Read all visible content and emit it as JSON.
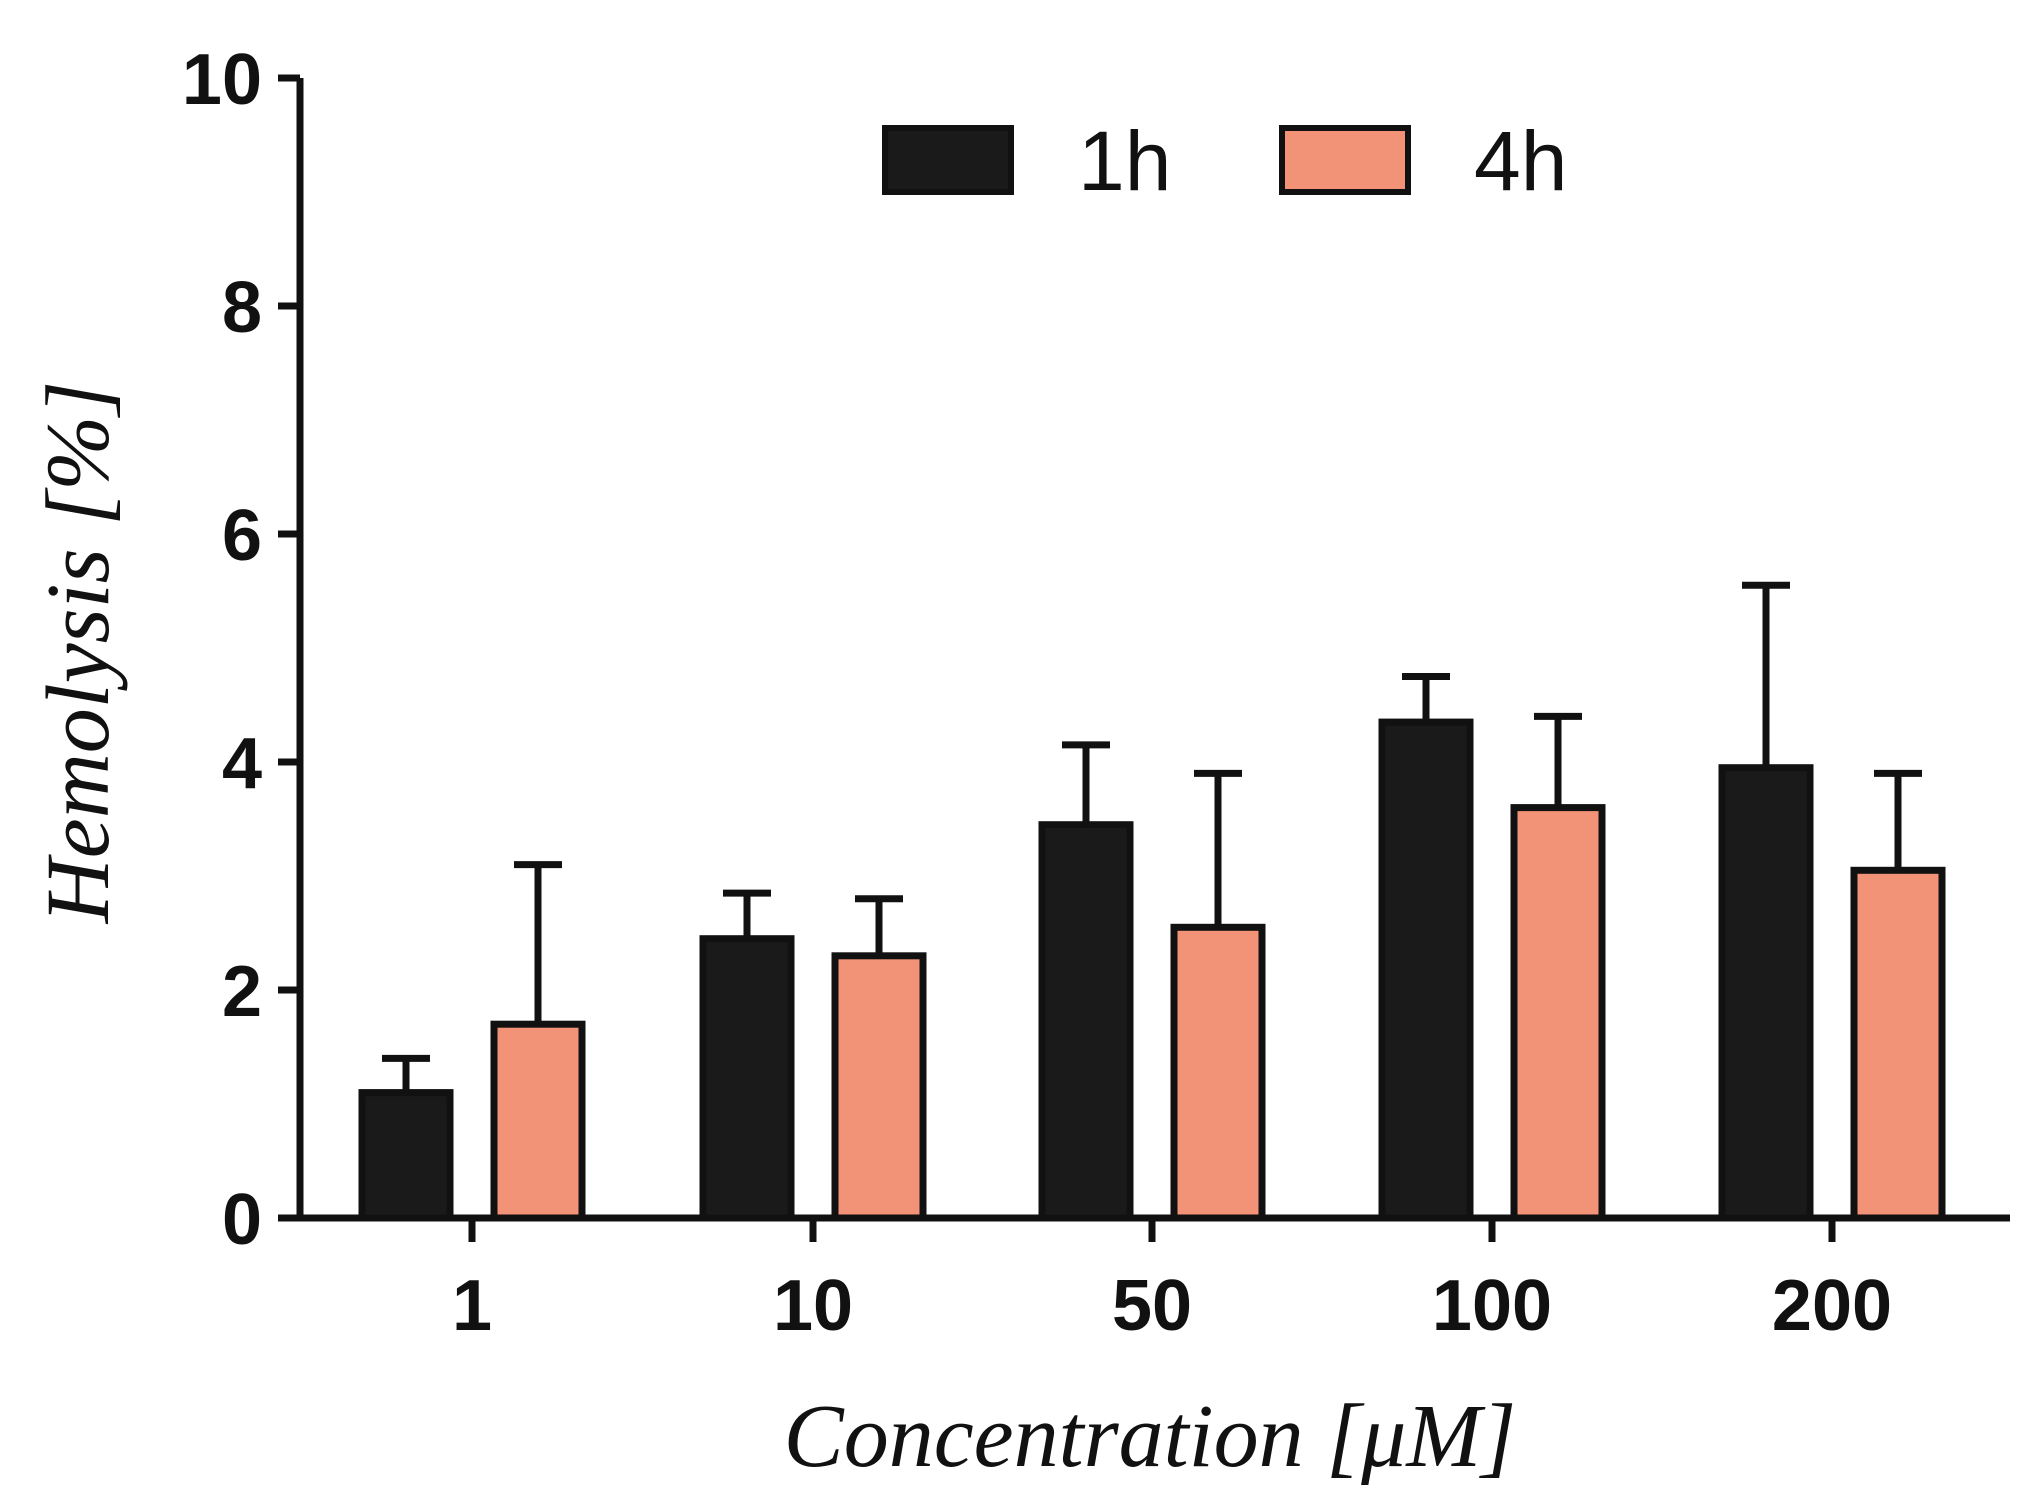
{
  "chart_data": {
    "type": "bar",
    "xlabel": "Concentration [μM]",
    "ylabel": "Hemolysis [%]",
    "ylim": [
      0,
      10
    ],
    "yticks": [
      0,
      2,
      4,
      6,
      8,
      10
    ],
    "categories": [
      "1",
      "10",
      "50",
      "100",
      "200"
    ],
    "series": [
      {
        "name": "1h",
        "color": "#1a1a1a",
        "values": [
          1.1,
          2.45,
          3.45,
          4.35,
          3.95
        ],
        "errors": [
          0.3,
          0.4,
          0.7,
          0.4,
          1.6
        ]
      },
      {
        "name": "4h",
        "color": "#f29377",
        "values": [
          1.7,
          2.3,
          2.55,
          3.6,
          3.05
        ],
        "errors": [
          1.4,
          0.5,
          1.35,
          0.8,
          0.85
        ]
      }
    ],
    "legend_position": "top",
    "grid": false
  }
}
